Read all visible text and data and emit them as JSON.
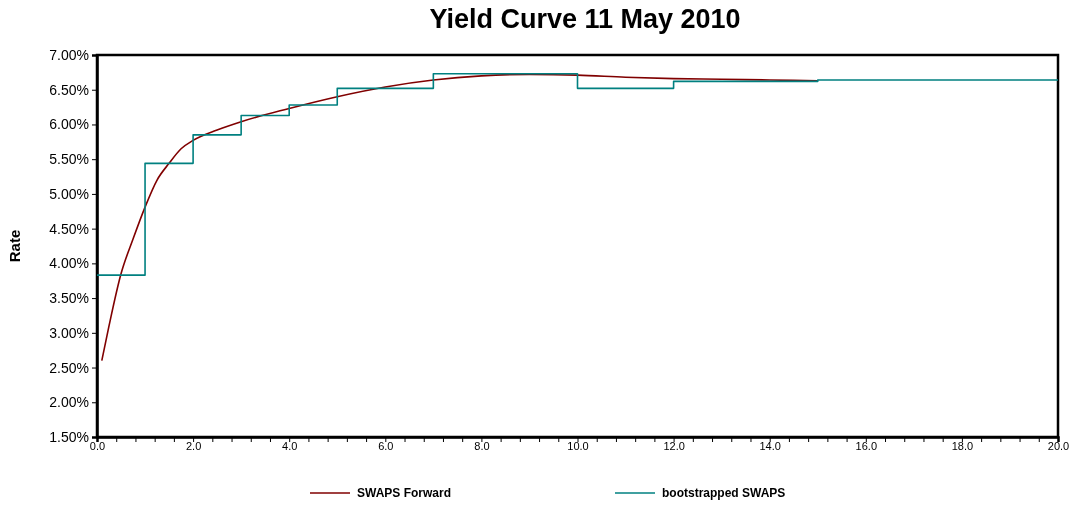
{
  "chart_data": {
    "type": "line",
    "title": "Yield Curve 11 May 2010",
    "ylabel": "Rate",
    "xlim": [
      0,
      20
    ],
    "xticks": [
      {
        "value": 0,
        "label": "0.0"
      },
      {
        "value": 0.4,
        "label": null
      },
      {
        "value": 0.8,
        "label": null
      },
      {
        "value": 1.2,
        "label": null
      },
      {
        "value": 1.6,
        "label": null
      },
      {
        "value": 2,
        "label": "2.0"
      },
      {
        "value": 2.4,
        "label": null
      },
      {
        "value": 2.8,
        "label": null
      },
      {
        "value": 3.2,
        "label": null
      },
      {
        "value": 3.6,
        "label": null
      },
      {
        "value": 4,
        "label": "4.0"
      },
      {
        "value": 4.4,
        "label": null
      },
      {
        "value": 4.8,
        "label": null
      },
      {
        "value": 5.2,
        "label": null
      },
      {
        "value": 5.6,
        "label": null
      },
      {
        "value": 6,
        "label": "6.0"
      },
      {
        "value": 6.4,
        "label": null
      },
      {
        "value": 6.8,
        "label": null
      },
      {
        "value": 7.2,
        "label": null
      },
      {
        "value": 7.6,
        "label": null
      },
      {
        "value": 8,
        "label": "8.0"
      },
      {
        "value": 8.4,
        "label": null
      },
      {
        "value": 8.8,
        "label": null
      },
      {
        "value": 9.2,
        "label": null
      },
      {
        "value": 9.6,
        "label": null
      },
      {
        "value": 10,
        "label": "10.0"
      },
      {
        "value": 10.4,
        "label": null
      },
      {
        "value": 10.8,
        "label": null
      },
      {
        "value": 11.2,
        "label": null
      },
      {
        "value": 11.6,
        "label": null
      },
      {
        "value": 12,
        "label": "12.0"
      },
      {
        "value": 12.4,
        "label": null
      },
      {
        "value": 12.8,
        "label": null
      },
      {
        "value": 13.2,
        "label": null
      },
      {
        "value": 13.6,
        "label": null
      },
      {
        "value": 14,
        "label": "14.0"
      },
      {
        "value": 14.4,
        "label": null
      },
      {
        "value": 14.8,
        "label": null
      },
      {
        "value": 15.2,
        "label": null
      },
      {
        "value": 15.6,
        "label": null
      },
      {
        "value": 16,
        "label": "16.0"
      },
      {
        "value": 16.4,
        "label": null
      },
      {
        "value": 16.8,
        "label": null
      },
      {
        "value": 17.2,
        "label": null
      },
      {
        "value": 17.6,
        "label": null
      },
      {
        "value": 18,
        "label": "18.0"
      },
      {
        "value": 18.4,
        "label": null
      },
      {
        "value": 18.8,
        "label": null
      },
      {
        "value": 19.2,
        "label": null
      },
      {
        "value": 19.6,
        "label": null
      },
      {
        "value": 20,
        "label": "20.0"
      }
    ],
    "ylim": [
      1.5,
      7
    ],
    "yticks": [
      {
        "value": 1.5,
        "label": "1.50%"
      },
      {
        "value": 2,
        "label": "2.00%"
      },
      {
        "value": 2.5,
        "label": "2.50%"
      },
      {
        "value": 3,
        "label": "3.00%"
      },
      {
        "value": 3.5,
        "label": "3.50%"
      },
      {
        "value": 4,
        "label": "4.00%"
      },
      {
        "value": 4.5,
        "label": "4.50%"
      },
      {
        "value": 5,
        "label": "5.00%"
      },
      {
        "value": 5.5,
        "label": "5.50%"
      },
      {
        "value": 6,
        "label": "6.00%"
      },
      {
        "value": 6.5,
        "label": "6.50%"
      },
      {
        "value": 7,
        "label": "7.00%"
      }
    ],
    "grid": false,
    "legend": "bottom",
    "series": [
      {
        "name": "SWAPS Forward",
        "color": "#800000",
        "x": [
          0.1,
          0.25,
          0.5,
          0.75,
          1,
          1.25,
          1.5,
          1.75,
          2,
          2.5,
          3,
          4,
          5,
          6,
          7,
          8,
          9,
          10,
          11,
          12,
          13,
          14,
          15
        ],
        "values": [
          2.6,
          3.1,
          3.85,
          4.35,
          4.81,
          5.2,
          5.44,
          5.65,
          5.77,
          5.92,
          6.04,
          6.23,
          6.4,
          6.54,
          6.64,
          6.7,
          6.72,
          6.71,
          6.68,
          6.66,
          6.65,
          6.64,
          6.63
        ]
      },
      {
        "name": "bootstrapped SWAPS",
        "color": "#008080",
        "type": "step",
        "x": [
          0,
          1,
          2,
          3,
          4,
          5,
          7,
          10,
          12,
          15,
          20
        ],
        "values": [
          3.83,
          5.44,
          5.85,
          6.13,
          6.28,
          6.52,
          6.73,
          6.52,
          6.62,
          6.64,
          6.64
        ]
      }
    ]
  }
}
